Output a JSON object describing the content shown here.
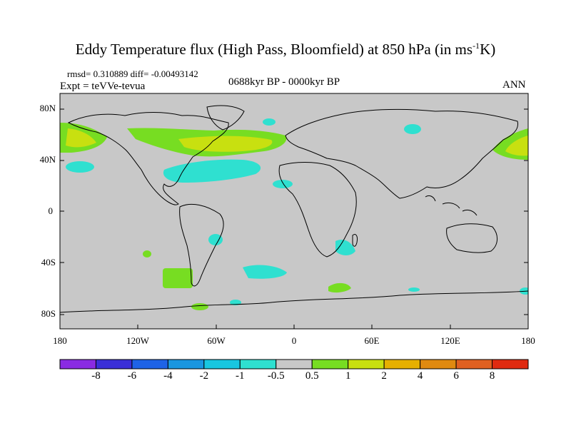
{
  "title_main": "Eddy Temperature flux (High Pass, Bloomfield) at 850 hPa (in ms",
  "title_sup": "-1",
  "title_end": "K)",
  "stats": "rmsd= 0.310889 diff= -0.00493142",
  "expt": "Expt = teVVe-tevua",
  "period": "0688kyr BP - 0000kyr BP",
  "season": "ANN",
  "lat_labels": [
    "80N",
    "40N",
    "0",
    "40S",
    "80S"
  ],
  "lon_labels": [
    "180",
    "120W",
    "60W",
    "0",
    "60E",
    "120E",
    "180"
  ],
  "colorbar": {
    "colors": [
      "#8a2be2",
      "#3a2fd8",
      "#1e63e6",
      "#1a96e0",
      "#18c6e0",
      "#2fe0d0",
      "#c8c8c8",
      "#77dd22",
      "#c8e010",
      "#e6b000",
      "#e08a10",
      "#e06020",
      "#e02a10"
    ],
    "labels": [
      "-8",
      "-6",
      "-4",
      "-2",
      "-1",
      "-0.5",
      "0.5",
      "1",
      "2",
      "4",
      "6",
      "8"
    ]
  },
  "colors": {
    "ocean_neutral": "#c8c8c8",
    "positive_weak": "#77dd22",
    "positive_mid": "#c8e010",
    "negative_weak": "#2fe0d0"
  }
}
